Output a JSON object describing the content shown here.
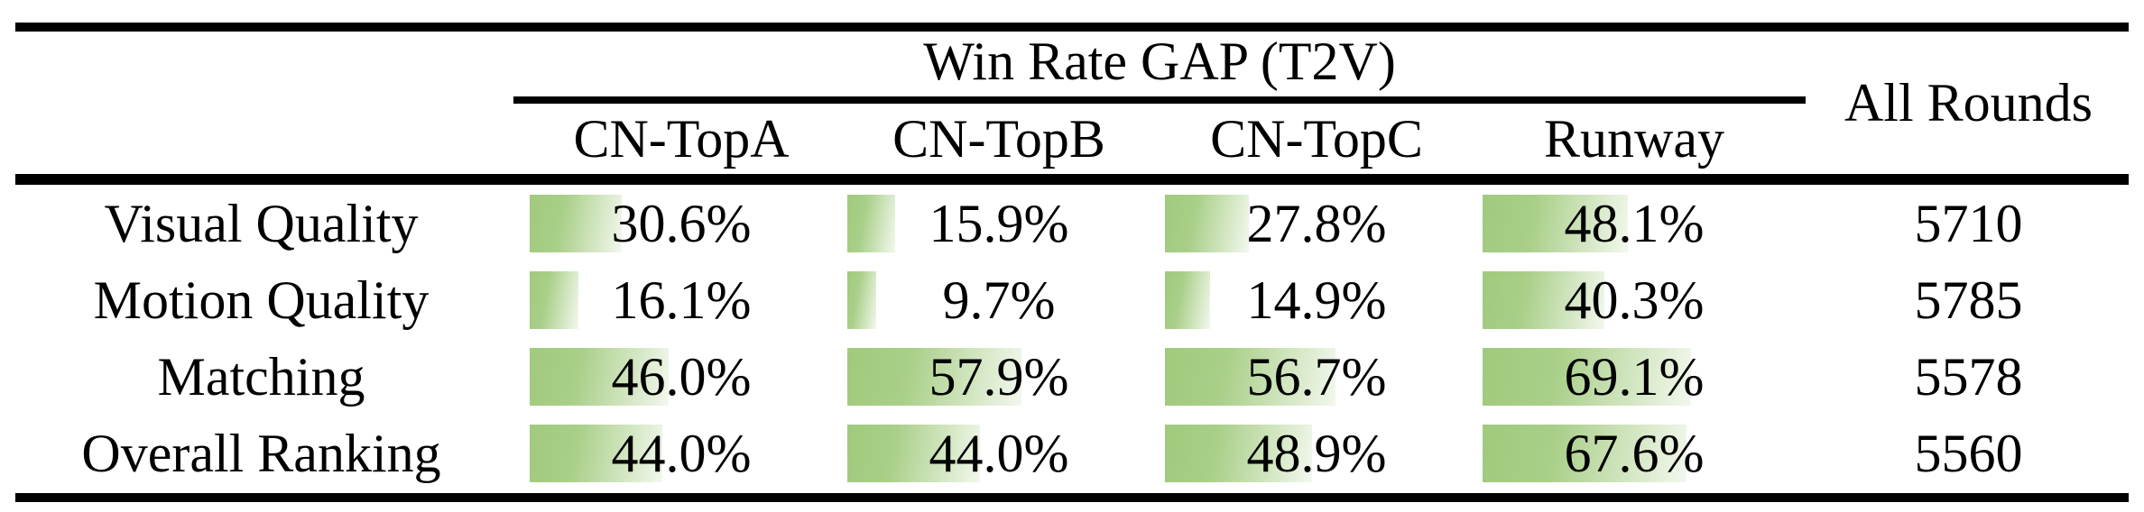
{
  "table": {
    "group_header": "Win Rate GAP (T2V)",
    "all_rounds_header": "All Rounds",
    "method_columns": [
      "CN-TopA",
      "CN-TopB",
      "CN-TopC",
      "Runway"
    ],
    "rows": [
      {
        "label": "Visual Quality",
        "values": [
          30.6,
          15.9,
          27.8,
          48.1
        ],
        "display": [
          "30.6%",
          "15.9%",
          "27.8%",
          "48.1%"
        ],
        "all_rounds": "5710"
      },
      {
        "label": "Motion Quality",
        "values": [
          16.1,
          9.7,
          14.9,
          40.3
        ],
        "display": [
          "16.1%",
          "9.7%",
          "14.9%",
          "40.3%"
        ],
        "all_rounds": "5785"
      },
      {
        "label": "Matching",
        "values": [
          46.0,
          57.9,
          56.7,
          69.1
        ],
        "display": [
          "46.0%",
          "57.9%",
          "56.7%",
          "69.1%"
        ],
        "all_rounds": "5578"
      },
      {
        "label": "Overall Ranking",
        "values": [
          44.0,
          44.0,
          48.9,
          67.6
        ],
        "display": [
          "44.0%",
          "44.0%",
          "48.9%",
          "67.6%"
        ],
        "all_rounds": "5560"
      }
    ],
    "colors": {
      "bar_green": "#a0ca7d",
      "bar_fade": "#f3f8ee",
      "rule_black": "#000000",
      "text_black": "#000000",
      "background": "#ffffff"
    }
  },
  "chart_data": {
    "type": "table",
    "title": "Win Rate GAP (T2V)",
    "columns": [
      "CN-TopA",
      "CN-TopB",
      "CN-TopC",
      "Runway",
      "All Rounds"
    ],
    "row_labels": [
      "Visual Quality",
      "Motion Quality",
      "Matching",
      "Overall Ranking"
    ],
    "win_rate_gap_percent": [
      [
        30.6,
        15.9,
        27.8,
        48.1
      ],
      [
        16.1,
        9.7,
        14.9,
        40.3
      ],
      [
        46.0,
        57.9,
        56.7,
        69.1
      ],
      [
        44.0,
        44.0,
        48.9,
        67.6
      ]
    ],
    "all_rounds": [
      5710,
      5785,
      5578,
      5560
    ]
  }
}
